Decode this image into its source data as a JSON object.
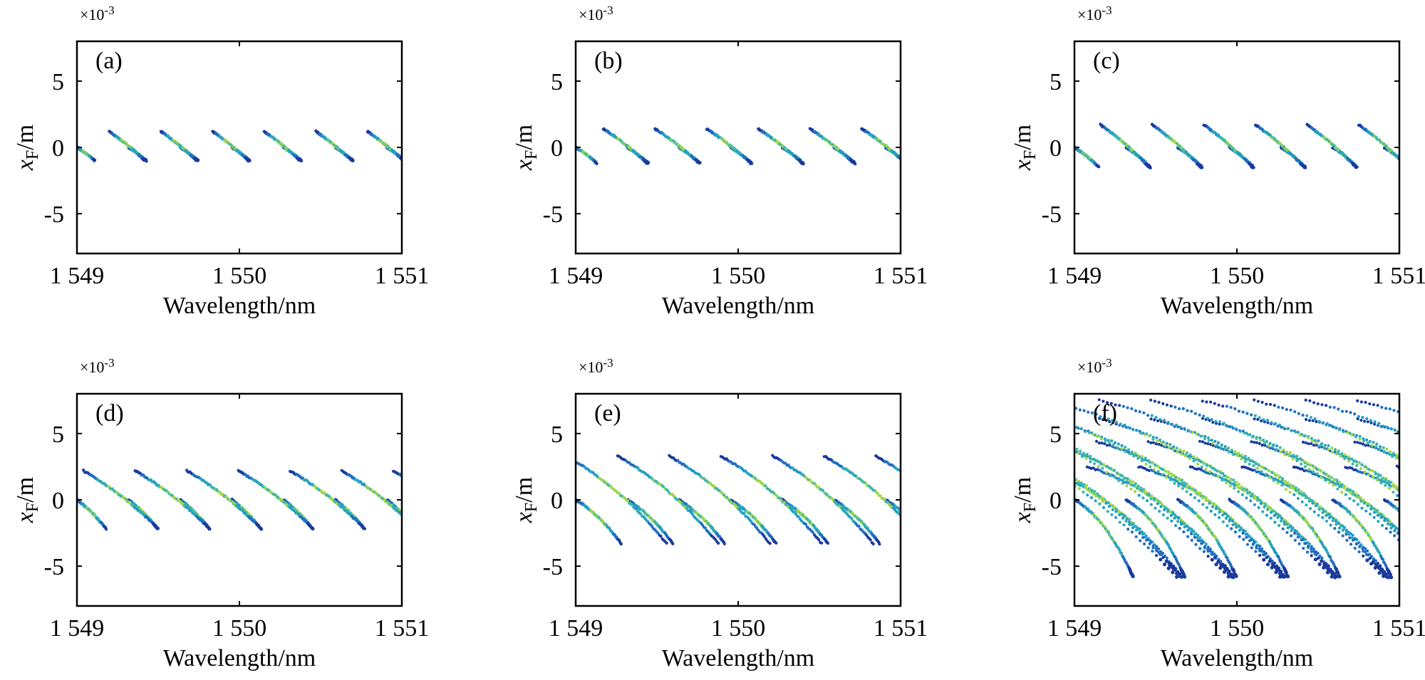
{
  "chart_data": [
    {
      "type": "scatter",
      "panel_label": "(a)",
      "xlabel": "Wavelength/nm",
      "ylabel_base": "x",
      "ylabel_sub": "F",
      "ylabel_unit": "/m",
      "y_multiplier_base": "×10",
      "y_multiplier_exp": "-3",
      "xlim": [
        1549,
        1551
      ],
      "ylim": [
        -8,
        8
      ],
      "xticks": [
        1549,
        1550,
        1551
      ],
      "xtick_labels": [
        "1 549",
        "1 550",
        "1 551"
      ],
      "yticks": [
        5,
        0,
        -5
      ],
      "ytick_labels": [
        "5",
        "0",
        "-5"
      ],
      "period_nm": 0.318,
      "branches": [
        {
          "x_start": 1549.0,
          "y_start": 0.0,
          "y_end": -1.0,
          "span_nm": 0.11,
          "curvature": 0.15
        },
        {
          "x_start": 1549.199,
          "y_start": 1.2,
          "y_end": -1.0,
          "span_nm": 0.22,
          "curvature": 0.15
        }
      ]
    },
    {
      "type": "scatter",
      "panel_label": "(b)",
      "xlabel": "Wavelength/nm",
      "ylabel_base": "x",
      "ylabel_sub": "F",
      "ylabel_unit": "/m",
      "y_multiplier_base": "×10",
      "y_multiplier_exp": "-3",
      "xlim": [
        1549,
        1551
      ],
      "ylim": [
        -8,
        8
      ],
      "xticks": [
        1549,
        1550,
        1551
      ],
      "xtick_labels": [
        "1 549",
        "1 550",
        "1 551"
      ],
      "yticks": [
        5,
        0,
        -5
      ],
      "ytick_labels": [
        "5",
        "0",
        "-5"
      ],
      "period_nm": 0.318,
      "branches": [
        {
          "x_start": 1549.0,
          "y_start": 0.0,
          "y_end": -1.2,
          "span_nm": 0.13,
          "curvature": 0.18
        },
        {
          "x_start": 1549.17,
          "y_start": 1.4,
          "y_end": -1.2,
          "span_nm": 0.27,
          "curvature": 0.18
        }
      ]
    },
    {
      "type": "scatter",
      "panel_label": "(c)",
      "xlabel": "Wavelength/nm",
      "ylabel_base": "x",
      "ylabel_sub": "F",
      "ylabel_unit": "/m",
      "y_multiplier_base": "×10",
      "y_multiplier_exp": "-3",
      "xlim": [
        1549,
        1551
      ],
      "ylim": [
        -8,
        8
      ],
      "xticks": [
        1549,
        1550,
        1551
      ],
      "xtick_labels": [
        "1 549",
        "1 550",
        "1 551"
      ],
      "yticks": [
        5,
        0,
        -5
      ],
      "ytick_labels": [
        "5",
        "0",
        "-5"
      ],
      "period_nm": 0.318,
      "branches": [
        {
          "x_start": 1549.0,
          "y_start": 0.0,
          "y_end": -1.5,
          "span_nm": 0.15,
          "curvature": 0.2
        },
        {
          "x_start": 1549.16,
          "y_start": 1.7,
          "y_end": -1.5,
          "span_nm": 0.3,
          "curvature": 0.2
        }
      ]
    },
    {
      "type": "scatter",
      "panel_label": "(d)",
      "xlabel": "Wavelength/nm",
      "ylabel_base": "x",
      "ylabel_sub": "F",
      "ylabel_unit": "/m",
      "y_multiplier_base": "×10",
      "y_multiplier_exp": "-3",
      "xlim": [
        1549,
        1551
      ],
      "ylim": [
        -8,
        8
      ],
      "xticks": [
        1549,
        1550,
        1551
      ],
      "xtick_labels": [
        "1 549",
        "1 550",
        "1 551"
      ],
      "yticks": [
        5,
        0,
        -5
      ],
      "ytick_labels": [
        "5",
        "0",
        "-5"
      ],
      "period_nm": 0.318,
      "branches": [
        {
          "x_start": 1549.0,
          "y_start": 0.0,
          "y_end": -2.2,
          "span_nm": 0.18,
          "curvature": 0.25
        },
        {
          "x_start": 1549.04,
          "y_start": 2.2,
          "y_end": -2.2,
          "span_nm": 0.46,
          "curvature": 0.25
        }
      ]
    },
    {
      "type": "scatter",
      "panel_label": "(e)",
      "xlabel": "Wavelength/nm",
      "ylabel_base": "x",
      "ylabel_sub": "F",
      "ylabel_unit": "/m",
      "y_multiplier_base": "×10",
      "y_multiplier_exp": "-3",
      "xlim": [
        1549,
        1551
      ],
      "ylim": [
        -8,
        8
      ],
      "xticks": [
        1549,
        1550,
        1551
      ],
      "xtick_labels": [
        "1 549",
        "1 550",
        "1 551"
      ],
      "yticks": [
        5,
        0,
        -5
      ],
      "ytick_labels": [
        "5",
        "0",
        "-5"
      ],
      "period_nm": 0.318,
      "branches": [
        {
          "x_start": 1549.0,
          "y_start": 0.0,
          "y_end": -3.3,
          "span_nm": 0.28,
          "curvature": 0.35
        },
        {
          "x_start": 1548.94,
          "y_start": 3.3,
          "y_end": -3.3,
          "span_nm": 0.62,
          "curvature": 0.35
        }
      ]
    },
    {
      "type": "scatter",
      "panel_label": "(f)",
      "xlabel": "Wavelength/nm",
      "ylabel_base": "x",
      "ylabel_sub": "F",
      "ylabel_unit": "/m",
      "y_multiplier_base": "×10",
      "y_multiplier_exp": "-3",
      "xlim": [
        1549,
        1551
      ],
      "ylim": [
        -8,
        8
      ],
      "xticks": [
        1549,
        1550,
        1551
      ],
      "xtick_labels": [
        "1 549",
        "1 550",
        "1 551"
      ],
      "yticks": [
        5,
        0,
        -5
      ],
      "ytick_labels": [
        "5",
        "0",
        "-5"
      ],
      "period_nm": 0.318,
      "branches": [
        {
          "x_start": 1549.0,
          "y_start": 0.0,
          "y_end": -5.8,
          "span_nm": 0.36,
          "curvature": 0.55
        },
        {
          "x_start": 1548.76,
          "y_start": 2.5,
          "y_end": -5.8,
          "span_nm": 0.9,
          "curvature": 0.6
        },
        {
          "x_start": 1548.5,
          "y_start": 4.4,
          "y_end": -5.8,
          "span_nm": 1.15,
          "curvature": 0.6
        },
        {
          "x_start": 1548.2,
          "y_start": 6.1,
          "y_end": -5.8,
          "span_nm": 1.45,
          "curvature": 0.6
        },
        {
          "x_start": 1547.88,
          "y_start": 7.5,
          "y_end": -5.8,
          "span_nm": 1.75,
          "curvature": 0.6
        }
      ]
    }
  ]
}
